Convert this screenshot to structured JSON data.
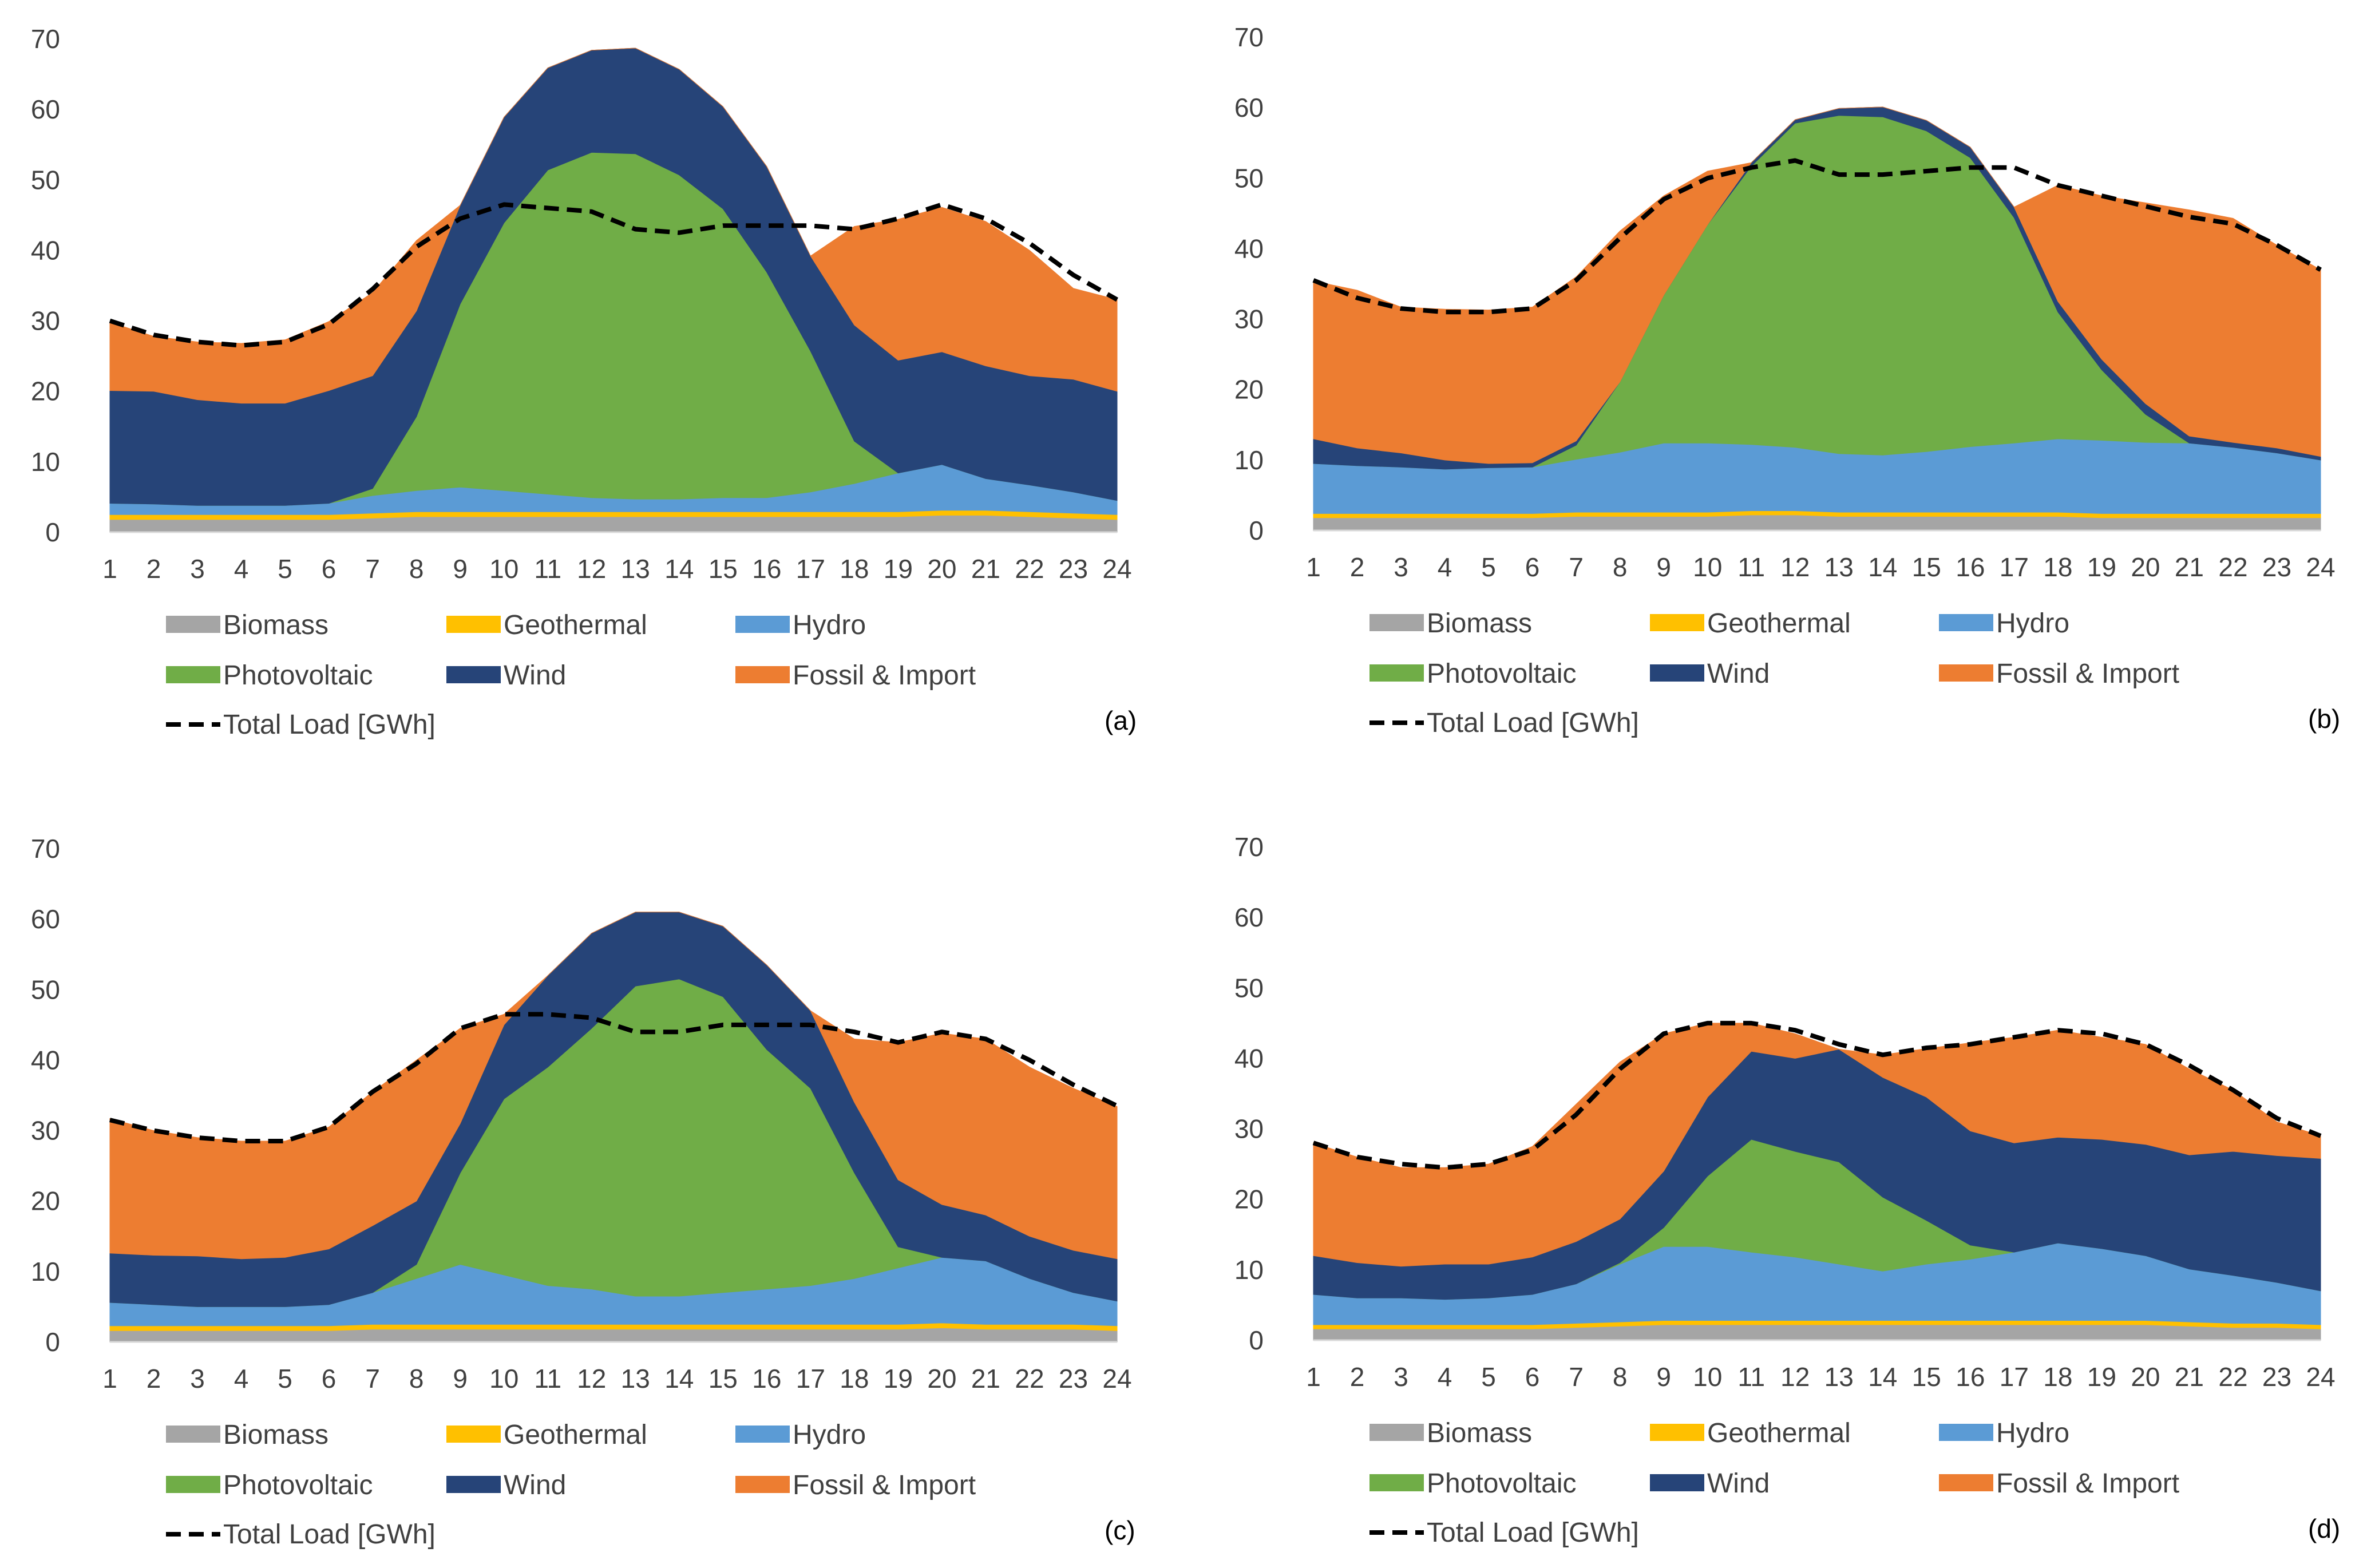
{
  "colors": {
    "Biomass": "#A5A5A5",
    "Geothermal": "#FFC000",
    "Hydro": "#5B9BD5",
    "Photovoltaic": "#70AD47",
    "Wind": "#264478",
    "Fossil & Import": "#ED7D31",
    "load": "#000000"
  },
  "legend": {
    "biomass": "Biomass",
    "geothermal": "Geothermal",
    "hydro": "Hydro",
    "photovoltaic": "Photovoltaic",
    "wind": "Wind",
    "fossil": "Fossil & Import",
    "load": "Total Load [GWh]"
  },
  "chart_data": [
    {
      "panel": "(a)",
      "type": "area",
      "stacked": true,
      "categories": [
        "1",
        "2",
        "3",
        "4",
        "5",
        "6",
        "7",
        "8",
        "9",
        "10",
        "11",
        "12",
        "13",
        "14",
        "15",
        "16",
        "17",
        "18",
        "19",
        "20",
        "21",
        "22",
        "23",
        "24"
      ],
      "ylim": [
        0,
        70
      ],
      "yticks": [
        0,
        10,
        20,
        30,
        40,
        50,
        60,
        70
      ],
      "series": [
        {
          "name": "Biomass",
          "values": [
            1.8,
            1.8,
            1.8,
            1.8,
            1.8,
            1.8,
            2.0,
            2.2,
            2.2,
            2.2,
            2.2,
            2.2,
            2.2,
            2.2,
            2.2,
            2.2,
            2.2,
            2.2,
            2.2,
            2.4,
            2.4,
            2.2,
            2.0,
            1.8
          ]
        },
        {
          "name": "Geothermal",
          "values": [
            0.7,
            0.7,
            0.7,
            0.7,
            0.7,
            0.7,
            0.7,
            0.7,
            0.7,
            0.7,
            0.7,
            0.7,
            0.7,
            0.7,
            0.7,
            0.7,
            0.7,
            0.7,
            0.7,
            0.7,
            0.7,
            0.7,
            0.7,
            0.7
          ]
        },
        {
          "name": "Hydro",
          "values": [
            1.6,
            1.5,
            1.3,
            1.3,
            1.3,
            1.6,
            2.5,
            3.0,
            3.5,
            3.0,
            2.5,
            2.0,
            1.8,
            1.8,
            2.0,
            2.0,
            2.8,
            4.0,
            5.5,
            6.5,
            4.5,
            3.8,
            3.0,
            2.0
          ]
        },
        {
          "name": "Photovoltaic",
          "values": [
            0,
            0,
            0,
            0,
            0,
            0,
            1.0,
            10.5,
            26.0,
            38.0,
            46.0,
            49.0,
            49.0,
            46.0,
            41.0,
            32.0,
            20.0,
            6.0,
            0,
            0,
            0,
            0,
            0,
            0
          ]
        },
        {
          "name": "Wind",
          "values": [
            16.0,
            16.0,
            15.0,
            14.5,
            14.5,
            16.0,
            16.0,
            15.0,
            14.0,
            15.0,
            14.5,
            14.5,
            15.0,
            15.0,
            14.5,
            15.0,
            13.5,
            16.5,
            16.0,
            16.0,
            16.0,
            15.5,
            16.0,
            15.5
          ]
        },
        {
          "name": "Fossil & Import",
          "values": [
            9.7,
            7.8,
            8.2,
            8.5,
            9.0,
            9.8,
            11.8,
            10.0,
            0,
            0,
            0,
            0,
            0,
            0,
            0,
            0,
            0,
            14.0,
            20.0,
            20.5,
            20.5,
            17.8,
            12.9,
            13.0
          ]
        }
      ],
      "total_load": {
        "name": "Total Load [GWh]",
        "values": [
          30,
          28,
          27,
          26.5,
          27,
          29.5,
          34.5,
          40.5,
          44.5,
          46.5,
          46,
          45.5,
          43,
          42.5,
          43.5,
          43.5,
          43.5,
          43,
          44.5,
          46.5,
          44.5,
          41,
          36.5,
          33
        ]
      }
    },
    {
      "panel": "(b)",
      "type": "area",
      "stacked": true,
      "categories": [
        "1",
        "2",
        "3",
        "4",
        "5",
        "6",
        "7",
        "8",
        "9",
        "10",
        "11",
        "12",
        "13",
        "14",
        "15",
        "16",
        "17",
        "18",
        "19",
        "20",
        "21",
        "22",
        "23",
        "24"
      ],
      "ylim": [
        0,
        70
      ],
      "yticks": [
        0,
        10,
        20,
        30,
        40,
        50,
        60,
        70
      ],
      "series": [
        {
          "name": "Biomass",
          "values": [
            1.8,
            1.8,
            1.8,
            1.8,
            1.8,
            1.8,
            2.0,
            2.0,
            2.0,
            2.0,
            2.2,
            2.2,
            2.0,
            2.0,
            2.0,
            2.0,
            2.0,
            2.0,
            1.8,
            1.8,
            1.8,
            1.8,
            1.8,
            1.8
          ]
        },
        {
          "name": "Geothermal",
          "values": [
            0.6,
            0.6,
            0.6,
            0.6,
            0.6,
            0.6,
            0.6,
            0.6,
            0.6,
            0.6,
            0.6,
            0.6,
            0.6,
            0.6,
            0.6,
            0.6,
            0.6,
            0.6,
            0.6,
            0.6,
            0.6,
            0.6,
            0.6,
            0.6
          ]
        },
        {
          "name": "Hydro",
          "values": [
            7.1,
            6.8,
            6.6,
            6.3,
            6.5,
            6.6,
            7.5,
            8.5,
            9.8,
            9.8,
            9.4,
            9.0,
            8.3,
            8.1,
            8.6,
            9.3,
            9.8,
            10.4,
            10.4,
            10.1,
            10.0,
            9.4,
            8.6,
            7.6
          ]
        },
        {
          "name": "Photovoltaic",
          "values": [
            0,
            0,
            0,
            0,
            0,
            0,
            2.0,
            10.0,
            21.0,
            31.0,
            39.5,
            46.0,
            48.0,
            48.0,
            45.5,
            41.0,
            32.0,
            18.0,
            10.0,
            4.0,
            0,
            0,
            0,
            0
          ]
        },
        {
          "name": "Wind",
          "values": [
            3.5,
            2.5,
            2.0,
            1.3,
            0.6,
            0.6,
            0.6,
            0,
            0,
            0,
            0.5,
            0.5,
            1.0,
            1.4,
            1.5,
            1.5,
            1.5,
            1.5,
            1.5,
            1.5,
            1.0,
            0.7,
            0.7,
            0.5
          ]
        },
        {
          "name": "Fossil & Import",
          "values": [
            22.4,
            22.4,
            20.7,
            21.4,
            21.8,
            22.1,
            23.3,
            21.4,
            14.1,
            7.6,
            0,
            0,
            0,
            0,
            0,
            0,
            0,
            16.5,
            23.2,
            28.5,
            32.1,
            31.8,
            28.8,
            26.5
          ]
        }
      ],
      "total_load": {
        "name": "Total Load [GWh]",
        "values": [
          35.5,
          33,
          31.5,
          31,
          31,
          31.5,
          35.5,
          41.5,
          47,
          50,
          51.5,
          52.5,
          50.5,
          50.5,
          51,
          51.5,
          51.5,
          49,
          47.5,
          46,
          44.5,
          43.5,
          40.5,
          37
        ]
      }
    },
    {
      "panel": "(c)",
      "type": "area",
      "stacked": true,
      "categories": [
        "1",
        "2",
        "3",
        "4",
        "5",
        "6",
        "7",
        "8",
        "9",
        "10",
        "11",
        "12",
        "13",
        "14",
        "15",
        "16",
        "17",
        "18",
        "19",
        "20",
        "21",
        "22",
        "23",
        "24"
      ],
      "ylim": [
        0,
        70
      ],
      "yticks": [
        0,
        10,
        20,
        30,
        40,
        50,
        60,
        70
      ],
      "series": [
        {
          "name": "Biomass",
          "values": [
            1.6,
            1.6,
            1.6,
            1.6,
            1.6,
            1.6,
            1.8,
            1.8,
            1.8,
            1.8,
            1.8,
            1.8,
            1.8,
            1.8,
            1.8,
            1.8,
            1.8,
            1.8,
            1.8,
            2.0,
            1.8,
            1.8,
            1.8,
            1.6
          ]
        },
        {
          "name": "Geothermal",
          "values": [
            0.7,
            0.7,
            0.7,
            0.7,
            0.7,
            0.7,
            0.7,
            0.7,
            0.7,
            0.7,
            0.7,
            0.7,
            0.7,
            0.7,
            0.7,
            0.7,
            0.7,
            0.7,
            0.7,
            0.7,
            0.7,
            0.7,
            0.7,
            0.7
          ]
        },
        {
          "name": "Hydro",
          "values": [
            3.3,
            3.0,
            2.7,
            2.7,
            2.7,
            3.0,
            4.5,
            6.5,
            8.5,
            7.0,
            5.5,
            5.0,
            4.0,
            4.0,
            4.5,
            5.0,
            5.5,
            6.5,
            8.0,
            9.3,
            9.0,
            6.5,
            4.5,
            3.5
          ]
        },
        {
          "name": "Photovoltaic",
          "values": [
            0,
            0,
            0,
            0,
            0,
            0,
            0,
            2.0,
            13.0,
            25.0,
            31.0,
            37.0,
            44.0,
            45.0,
            42.0,
            34.0,
            28.0,
            15.0,
            3.0,
            0,
            0,
            0,
            0,
            0
          ]
        },
        {
          "name": "Wind",
          "values": [
            7.0,
            7.0,
            7.2,
            6.8,
            7.0,
            7.9,
            9.5,
            9.0,
            7.0,
            10.5,
            13.0,
            13.5,
            10.5,
            9.5,
            10.0,
            12.0,
            11.0,
            10.0,
            9.5,
            7.5,
            6.5,
            6.0,
            6.0,
            6.0
          ]
        },
        {
          "name": "Fossil & Import",
          "values": [
            19.1,
            17.7,
            16.8,
            16.7,
            16.5,
            17.3,
            19.0,
            20.0,
            13.5,
            1.5,
            0,
            0,
            0,
            0,
            0,
            0,
            0,
            9.0,
            19.5,
            24.3,
            25.0,
            24.0,
            23.0,
            21.6
          ]
        }
      ],
      "total_load": {
        "name": "Total Load [GWh]",
        "values": [
          31.5,
          30,
          29,
          28.5,
          28.5,
          30.5,
          35.5,
          39.5,
          44.5,
          46.5,
          46.5,
          46,
          44,
          44,
          45,
          45,
          45,
          44,
          42.5,
          44,
          43,
          40,
          36.5,
          33.5
        ]
      }
    },
    {
      "panel": "(d)",
      "type": "area",
      "stacked": true,
      "categories": [
        "1",
        "2",
        "3",
        "4",
        "5",
        "6",
        "7",
        "8",
        "9",
        "10",
        "11",
        "12",
        "13",
        "14",
        "15",
        "16",
        "17",
        "18",
        "19",
        "20",
        "21",
        "22",
        "23",
        "24"
      ],
      "ylim": [
        0,
        70
      ],
      "yticks": [
        0,
        10,
        20,
        30,
        40,
        50,
        60,
        70
      ],
      "series": [
        {
          "name": "Biomass",
          "values": [
            1.6,
            1.6,
            1.6,
            1.6,
            1.6,
            1.6,
            1.8,
            2.0,
            2.2,
            2.2,
            2.2,
            2.2,
            2.2,
            2.2,
            2.2,
            2.2,
            2.2,
            2.2,
            2.2,
            2.2,
            2.0,
            1.8,
            1.8,
            1.6
          ]
        },
        {
          "name": "Geothermal",
          "values": [
            0.6,
            0.6,
            0.6,
            0.6,
            0.6,
            0.6,
            0.6,
            0.6,
            0.6,
            0.6,
            0.6,
            0.6,
            0.6,
            0.6,
            0.6,
            0.6,
            0.6,
            0.6,
            0.6,
            0.6,
            0.6,
            0.6,
            0.6,
            0.6
          ]
        },
        {
          "name": "Hydro",
          "values": [
            4.3,
            3.8,
            3.8,
            3.6,
            3.8,
            4.3,
            5.6,
            8.2,
            10.5,
            10.5,
            9.7,
            9.0,
            8.0,
            7.0,
            8.0,
            8.7,
            9.7,
            11.0,
            10.2,
            9.2,
            7.5,
            6.8,
            5.8,
            4.8
          ]
        },
        {
          "name": "Photovoltaic",
          "values": [
            0,
            0,
            0,
            0,
            0,
            0,
            0,
            0.2,
            2.7,
            10.0,
            16.0,
            15.0,
            14.5,
            10.5,
            6.2,
            2.0,
            0,
            0,
            0,
            0,
            0,
            0,
            0,
            0
          ]
        },
        {
          "name": "Wind",
          "values": [
            5.5,
            5.0,
            4.5,
            5.0,
            4.8,
            5.3,
            6.0,
            6.2,
            8.0,
            11.2,
            12.5,
            13.2,
            16.0,
            17.0,
            17.5,
            16.2,
            15.5,
            15.0,
            15.5,
            15.8,
            16.2,
            17.6,
            18.0,
            18.8
          ]
        },
        {
          "name": "Fossil & Import",
          "values": [
            16.0,
            15.0,
            14.0,
            13.7,
            14.2,
            15.7,
            19.5,
            22.3,
            19.5,
            10.5,
            4.0,
            3.5,
            0,
            3.2,
            6.9,
            12.5,
            15.0,
            15.2,
            14.5,
            14.2,
            12.2,
            8.7,
            4.8,
            3.2
          ]
        }
      ],
      "total_load": {
        "name": "Total Load [GWh]",
        "values": [
          28,
          26,
          25,
          24.5,
          25,
          27,
          32,
          38.5,
          43.5,
          45,
          45,
          44,
          42,
          40.5,
          41.5,
          42,
          43,
          44,
          43.5,
          42,
          39,
          35.5,
          31.5,
          29
        ]
      }
    }
  ]
}
